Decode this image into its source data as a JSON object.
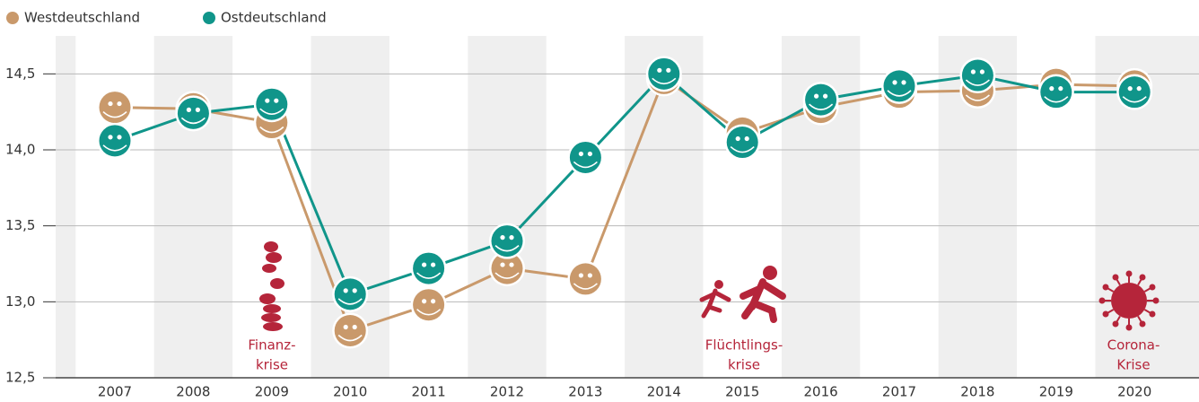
{
  "chart_data": {
    "type": "line",
    "categories": [
      "2007",
      "2008",
      "2009",
      "2010",
      "2011",
      "2012",
      "2013",
      "2014",
      "2015",
      "2016",
      "2017",
      "2018",
      "2019",
      "2020"
    ],
    "series": [
      {
        "name": "Westdeutschland",
        "color": "#c9996b",
        "values": [
          14.28,
          14.27,
          14.18,
          12.81,
          12.98,
          13.22,
          13.15,
          14.47,
          14.11,
          14.28,
          14.38,
          14.39,
          14.43,
          14.42
        ]
      },
      {
        "name": "Ostdeutschland",
        "color": "#10958a",
        "values": [
          14.06,
          14.24,
          14.3,
          13.05,
          13.22,
          13.4,
          13.95,
          14.5,
          14.05,
          14.33,
          14.42,
          14.49,
          14.38,
          14.38
        ]
      }
    ],
    "ylim": [
      12.5,
      14.75
    ],
    "yticks": [
      {
        "value": 12.5,
        "label": "12,5"
      },
      {
        "value": 13.0,
        "label": "13,0"
      },
      {
        "value": 13.5,
        "label": "13,5"
      },
      {
        "value": 14.0,
        "label": "14,0"
      },
      {
        "value": 14.5,
        "label": "14,5"
      }
    ],
    "grid": true,
    "annotations": [
      [
        "Finanz-",
        "krise"
      ],
      [
        "Flüchtlings-",
        "krise"
      ],
      [
        "Corona-",
        "Krise"
      ]
    ]
  }
}
